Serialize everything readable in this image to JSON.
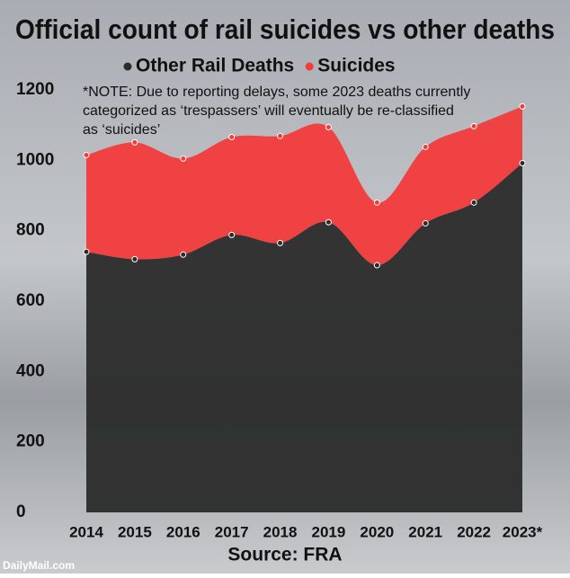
{
  "chart_data": {
    "type": "stacked-area",
    "title": "Official count of rail suicides vs other deaths",
    "note": [
      "*NOTE: Due to reporting delays, some 2023 deaths currently",
      "categorized as ‘trespassers’ will eventually be re-classified",
      "as ‘suicides’"
    ],
    "source": "Source: FRA",
    "watermark": "DailyMail.com",
    "categories": [
      "2014",
      "2015",
      "2016",
      "2017",
      "2018",
      "2019",
      "2020",
      "2021",
      "2022",
      "2023*"
    ],
    "series": [
      {
        "name": "Other Rail Deaths",
        "color": "#2b2b2b",
        "values": [
          740,
          719,
          732,
          788,
          765,
          824,
          702,
          821,
          880,
          992
        ]
      },
      {
        "name": "Suicides",
        "color": "#f23b3b",
        "values": [
          275,
          332,
          273,
          278,
          304,
          270,
          178,
          217,
          217,
          161
        ]
      }
    ],
    "ylim": [
      0,
      1200
    ],
    "yticks": [
      0,
      200,
      400,
      600,
      800,
      1000,
      1200
    ]
  }
}
